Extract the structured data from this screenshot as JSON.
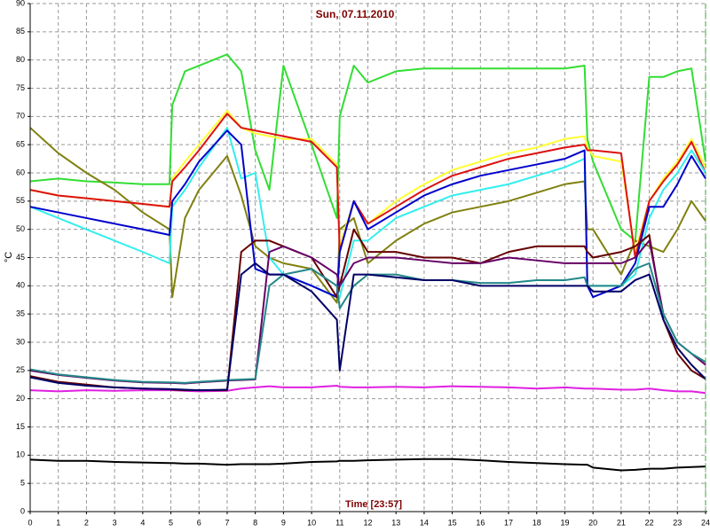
{
  "chart_data": {
    "type": "line",
    "title": "Sun, 07.11.2010",
    "x_label": "Time [23:57]",
    "y_label": "°C",
    "x": [
      0,
      1,
      2,
      3,
      4,
      4.95,
      5.05,
      5.5,
      6,
      7,
      7.5,
      8,
      8.5,
      9,
      10,
      10.9,
      11,
      11.5,
      12,
      13,
      14,
      15,
      16,
      17,
      18,
      19,
      19.7,
      19.8,
      20,
      21,
      21.5,
      22,
      22.5,
      23,
      23.5,
      24
    ],
    "xlim": [
      0,
      24
    ],
    "xticks": [
      0,
      1,
      2,
      3,
      4,
      5,
      6,
      7,
      8,
      9,
      10,
      11,
      12,
      13,
      14,
      15,
      16,
      17,
      18,
      19,
      20,
      21,
      22,
      23,
      24
    ],
    "ylim": [
      0,
      90
    ],
    "yticks": [
      0,
      5,
      10,
      15,
      20,
      25,
      30,
      35,
      40,
      45,
      50,
      55,
      60,
      65,
      70,
      75,
      80,
      85,
      90
    ],
    "grid": true,
    "series": [
      {
        "color": "#000000",
        "values": [
          9.2,
          9,
          9,
          8.8,
          8.7,
          8.6,
          8.6,
          8.5,
          8.5,
          8.3,
          8.4,
          8.4,
          8.4,
          8.5,
          8.8,
          8.9,
          9,
          9,
          9.1,
          9.2,
          9.3,
          9.3,
          9.1,
          8.8,
          8.6,
          8.4,
          8.3,
          8.3,
          7.8,
          7.3,
          7.4,
          7.6,
          7.6,
          7.8,
          7.9,
          8
        ]
      },
      {
        "color": "#e020e0",
        "values": [
          21.5,
          21.3,
          21.5,
          21.4,
          21.5,
          21.5,
          21.5,
          21.4,
          21.3,
          21.4,
          21.8,
          22,
          22.2,
          22,
          22,
          22.3,
          22.1,
          22,
          22,
          22.1,
          22,
          22.2,
          22.1,
          22,
          21.8,
          22,
          21.8,
          21.8,
          21.8,
          21.6,
          21.6,
          21.8,
          21.5,
          21.3,
          21.3,
          21
        ]
      },
      {
        "color": "#33dd33",
        "values": [
          58.5,
          59,
          58.5,
          58.3,
          58,
          58,
          72,
          78,
          79,
          81,
          78,
          64,
          57,
          79,
          65,
          52,
          70,
          79,
          76,
          78,
          78.5,
          78.5,
          78.5,
          78.5,
          78.5,
          78.5,
          79,
          66,
          62,
          50,
          48,
          77,
          77,
          78,
          78.5,
          62
        ]
      },
      {
        "color": "#808010",
        "values": [
          68,
          63.5,
          60,
          57,
          53,
          50,
          38,
          52,
          57,
          63,
          56,
          47,
          45,
          44,
          43,
          37,
          50,
          52,
          44,
          48,
          51,
          53,
          54,
          55,
          56.5,
          58,
          58.5,
          50,
          50,
          42,
          48,
          47,
          46,
          50,
          55,
          51.5
        ]
      },
      {
        "color": "#ffff33",
        "values": [
          57,
          56,
          55.5,
          55,
          54.5,
          54,
          59,
          62,
          65,
          71,
          68,
          67,
          66.5,
          66,
          66,
          61.5,
          47,
          55,
          51,
          55,
          58,
          60.5,
          62,
          63.5,
          64.5,
          66,
          66.5,
          64.5,
          63,
          62,
          46,
          55,
          59,
          62,
          66,
          61
        ]
      },
      {
        "color": "#dd1111",
        "values": [
          57,
          56,
          55.5,
          55,
          54.5,
          54,
          58.5,
          61,
          64,
          70.5,
          68,
          67.5,
          67,
          66.5,
          65.5,
          61,
          46,
          55,
          51,
          54,
          57,
          59.5,
          61,
          62.5,
          63.5,
          64.5,
          65,
          64,
          64,
          63.5,
          45,
          55,
          58.5,
          61.5,
          65.5,
          60
        ]
      },
      {
        "color": "#33eeee",
        "values": [
          54,
          52,
          50,
          48,
          46,
          44,
          54,
          57,
          61,
          68,
          59,
          60,
          45,
          42,
          40,
          38,
          38,
          48,
          48,
          52,
          54,
          56,
          57,
          58,
          59.5,
          61,
          62.5,
          40,
          40,
          40,
          42,
          52,
          57,
          60,
          64,
          60
        ]
      },
      {
        "color": "#0000cc",
        "values": [
          54,
          53,
          52,
          51,
          50,
          49,
          55,
          58,
          62,
          67.5,
          65,
          43,
          42,
          42,
          40,
          38,
          46,
          55,
          50,
          53,
          56,
          58,
          59.5,
          60.5,
          61.5,
          62.5,
          64,
          40,
          38,
          40,
          44,
          54,
          54,
          58,
          63,
          59
        ]
      },
      {
        "color": "#660000",
        "values": [
          24,
          23,
          22.5,
          22,
          21.8,
          21.7,
          21.6,
          21.5,
          21.5,
          21.5,
          46,
          48,
          48,
          47,
          45,
          38,
          40,
          50,
          46,
          46,
          45,
          45,
          44,
          46,
          47,
          47,
          47,
          46,
          45,
          46,
          47,
          49,
          34,
          28,
          25,
          23.5
        ]
      },
      {
        "color": "#660066",
        "values": [
          25,
          24.2,
          23.7,
          23.2,
          22.9,
          22.8,
          22.8,
          22.7,
          22.9,
          23.2,
          23.3,
          23.4,
          46,
          47,
          45,
          42,
          40,
          44,
          45,
          45,
          44.5,
          44,
          44,
          45,
          44.5,
          44,
          44,
          44,
          44,
          44,
          45,
          48,
          35,
          30,
          28,
          26
        ]
      },
      {
        "color": "#228888",
        "values": [
          25.2,
          24.3,
          23.8,
          23.3,
          23,
          22.9,
          22.9,
          22.8,
          23,
          23.3,
          23.4,
          23.5,
          40,
          42,
          43,
          40,
          36,
          40,
          42,
          42,
          41,
          41,
          40.5,
          40.5,
          41,
          41,
          41.5,
          40,
          40,
          40,
          43,
          44,
          35,
          30,
          28,
          26.5
        ]
      },
      {
        "color": "#000066",
        "values": [
          23.8,
          22.8,
          22.3,
          22,
          21.8,
          21.7,
          21.7,
          21.6,
          21.5,
          21.6,
          42,
          44,
          42,
          42,
          39,
          34,
          25,
          42,
          42,
          41.5,
          41,
          41,
          40,
          40,
          40,
          40,
          40,
          40,
          39,
          39,
          41,
          42,
          34,
          29,
          26,
          23.5
        ]
      }
    ]
  }
}
